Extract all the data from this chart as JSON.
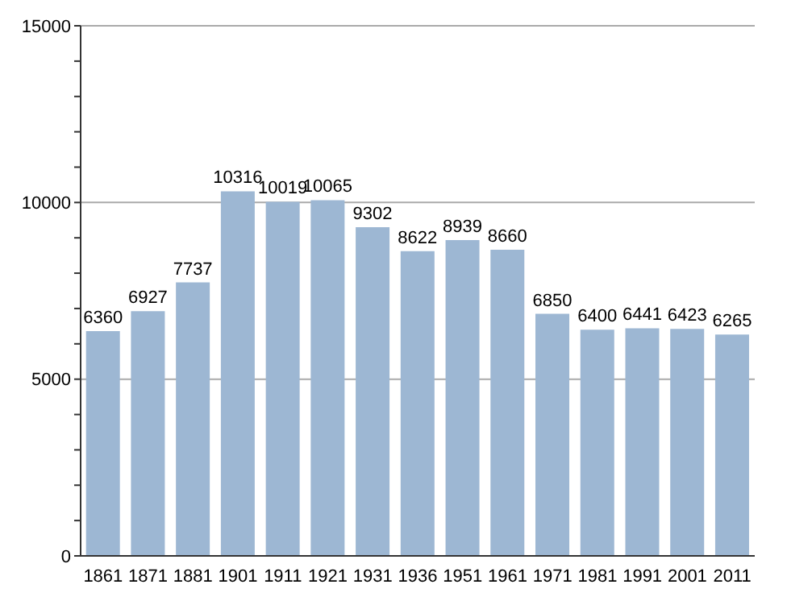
{
  "chart_data": {
    "type": "bar",
    "categories": [
      "1861",
      "1871",
      "1881",
      "1901",
      "1911",
      "1921",
      "1931",
      "1936",
      "1951",
      "1961",
      "1971",
      "1981",
      "1991",
      "2001",
      "2011"
    ],
    "values": [
      6360,
      6927,
      7737,
      10316,
      10019,
      10065,
      9302,
      8622,
      8939,
      8660,
      6850,
      6400,
      6441,
      6423,
      6265
    ],
    "color": "#9db7d3",
    "ylim": [
      0,
      15000
    ],
    "yticks": [
      0,
      {
        "value": 1000,
        "label": null
      },
      {
        "value": 2000,
        "label": null
      },
      {
        "value": 3000,
        "label": null
      },
      {
        "value": 4000,
        "label": null
      },
      5000,
      {
        "value": 6000,
        "label": null
      },
      {
        "value": 7000,
        "label": null
      },
      {
        "value": 8000,
        "label": null
      },
      {
        "value": 9000,
        "label": null
      },
      10000,
      {
        "value": 11000,
        "label": null
      },
      {
        "value": 12000,
        "label": null
      },
      {
        "value": 13000,
        "label": null
      },
      {
        "value": 14000,
        "label": null
      },
      15000
    ],
    "grid": "y",
    "data_labels": true,
    "legend": false
  }
}
